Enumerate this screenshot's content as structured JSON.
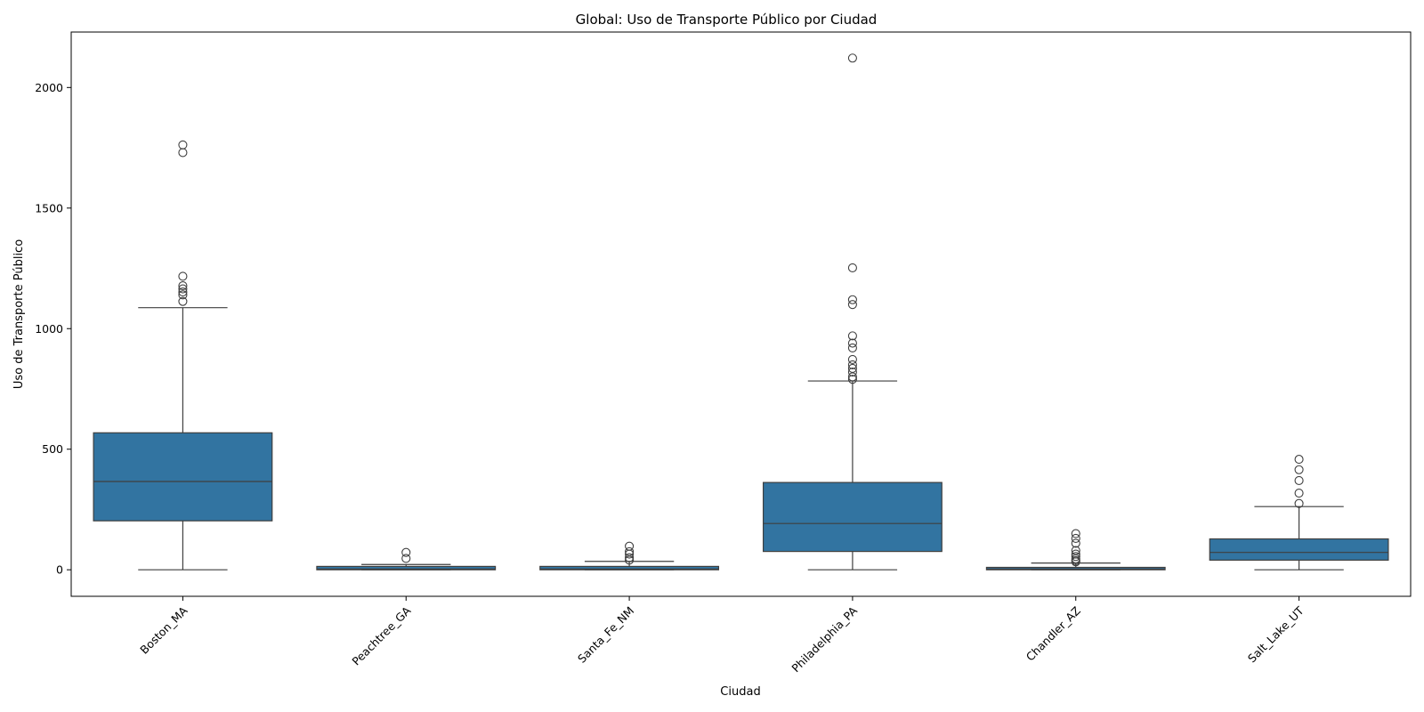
{
  "chart_data": {
    "type": "box",
    "title": "Global: Uso de Transporte Público por Ciudad",
    "xlabel": "Ciudad",
    "ylabel": "Uso de Transporte Público",
    "ylim": [
      -110,
      2230
    ],
    "yticks": [
      0,
      500,
      1000,
      1500,
      2000
    ],
    "box_color": "#3274a1",
    "line_color": "#3f3f3f",
    "categories": [
      "Boston_MA",
      "Peachtree_GA",
      "Santa_Fe_NM",
      "Philadelphia_PA",
      "Chandler_AZ",
      "Salt_Lake_UT"
    ],
    "boxes": [
      {
        "name": "Boston_MA",
        "whisker_low": 0,
        "q1": 203,
        "median": 366,
        "q3": 568,
        "whisker_high": 1087,
        "outliers": [
          1113,
          1140,
          1152,
          1165,
          1178,
          1217,
          1730,
          1762
        ]
      },
      {
        "name": "Peachtree_GA",
        "whisker_low": 0,
        "q1": 0,
        "median": 3,
        "q3": 14,
        "whisker_high": 22,
        "outliers": [
          47,
          72
        ]
      },
      {
        "name": "Santa_Fe_NM",
        "whisker_low": 0,
        "q1": 0,
        "median": 3,
        "q3": 14,
        "whisker_high": 35,
        "outliers": [
          40,
          50,
          65,
          75,
          98
        ]
      },
      {
        "name": "Philadelphia_PA",
        "whisker_low": 0,
        "q1": 76,
        "median": 192,
        "q3": 362,
        "whisker_high": 783,
        "outliers": [
          790,
          800,
          820,
          835,
          850,
          872,
          920,
          940,
          970,
          1100,
          1120,
          1252,
          2122
        ]
      },
      {
        "name": "Chandler_AZ",
        "whisker_low": 0,
        "q1": 0,
        "median": 3,
        "q3": 10,
        "whisker_high": 28,
        "outliers": [
          33,
          38,
          45,
          55,
          65,
          80,
          110,
          130,
          150
        ]
      },
      {
        "name": "Salt_Lake_UT",
        "whisker_low": 0,
        "q1": 40,
        "median": 72,
        "q3": 128,
        "whisker_high": 262,
        "outliers": [
          275,
          318,
          370,
          415,
          458
        ]
      }
    ],
    "grid": false,
    "legend": "none"
  }
}
